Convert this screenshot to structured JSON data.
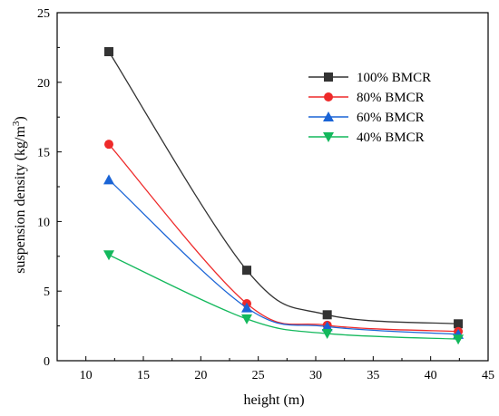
{
  "chart_data": {
    "type": "line",
    "title": "",
    "xlabel": "height (m)",
    "ylabel_main": "suspension density (kg/m",
    "ylabel_sup": "3",
    "ylabel_end": ")",
    "xlim": [
      7.5,
      45
    ],
    "ylim": [
      0,
      25
    ],
    "xticks": [
      10,
      15,
      20,
      25,
      30,
      35,
      40,
      45
    ],
    "yticks": [
      0,
      5,
      10,
      15,
      20,
      25
    ],
    "grid": false,
    "legend": "upper-right",
    "x": [
      12,
      24,
      31,
      42.4
    ],
    "series": [
      {
        "name": "100% BMCR",
        "values": [
          22.2,
          6.5,
          3.3,
          2.65
        ],
        "color": "#333333",
        "marker": "square"
      },
      {
        "name": "80% BMCR",
        "values": [
          15.55,
          4.1,
          2.55,
          2.1
        ],
        "color": "#ee2a2a",
        "marker": "circle"
      },
      {
        "name": "60% BMCR",
        "values": [
          13.0,
          3.8,
          2.45,
          1.9
        ],
        "color": "#1a64d6",
        "marker": "triangle-up"
      },
      {
        "name": "40% BMCR",
        "values": [
          7.6,
          3.0,
          1.95,
          1.55
        ],
        "color": "#13b85c",
        "marker": "triangle-down"
      }
    ]
  }
}
